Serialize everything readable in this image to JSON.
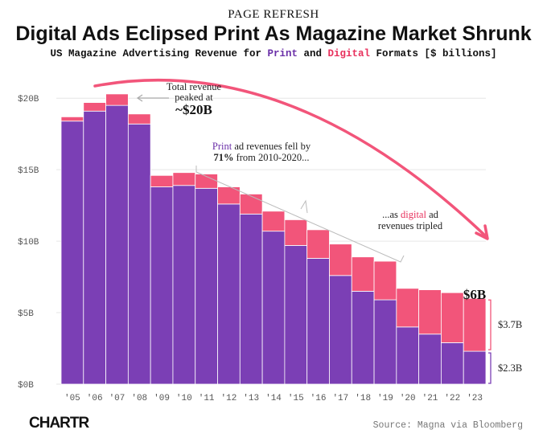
{
  "header": {
    "kicker": "PAGE REFRESH",
    "title": "Digital Ads Eclipsed Print As Magazine Market Shrunk",
    "subtitle_parts": [
      "US Magazine Advertising Revenue for ",
      "Print",
      " and ",
      "Digital",
      " Formats [$ billions]"
    ]
  },
  "colors": {
    "print": "#7b3fb5",
    "digital": "#f2557a",
    "print_text": "#6a2fa8",
    "digital_text": "#e8305c",
    "arrow": "#f2557a"
  },
  "chart_data": {
    "type": "bar",
    "stacked": true,
    "categories": [
      "'05",
      "'06",
      "'07",
      "'08",
      "'09",
      "'10",
      "'11",
      "'12",
      "'13",
      "'14",
      "'15",
      "'16",
      "'17",
      "'18",
      "'19",
      "'20",
      "'21",
      "'22",
      "'23"
    ],
    "series": [
      {
        "name": "Print",
        "values": [
          18.4,
          19.1,
          19.5,
          18.2,
          13.8,
          13.9,
          13.7,
          12.6,
          11.9,
          10.7,
          9.7,
          8.8,
          7.6,
          6.5,
          5.9,
          4.0,
          3.5,
          2.9,
          2.3
        ]
      },
      {
        "name": "Digital",
        "values": [
          0.3,
          0.6,
          0.8,
          0.7,
          0.8,
          0.9,
          1.0,
          1.2,
          1.4,
          1.4,
          1.8,
          2.0,
          2.2,
          2.4,
          2.7,
          2.7,
          3.1,
          3.5,
          3.7
        ]
      }
    ],
    "yticks": [
      {
        "value": 0,
        "label": "$0B"
      },
      {
        "value": 5,
        "label": "$5B"
      },
      {
        "value": 10,
        "label": "$10B"
      },
      {
        "value": 15,
        "label": "$15B"
      },
      {
        "value": 20,
        "label": "$20B"
      }
    ],
    "ylim": [
      0,
      21.7
    ],
    "grid": true
  },
  "annotations": {
    "peak_line1": "Total revenue",
    "peak_line2": "peaked at",
    "peak_value": "~$20B",
    "print_fall_l1_a": "Print",
    "print_fall_l1_b": " ad revenues fell by",
    "print_fall_l2_a": "71%",
    "print_fall_l2_b": " from 2010-2020...",
    "digital_l1_a": "...as ",
    "digital_l1_b": "digital",
    "digital_l1_c": " ad",
    "digital_l2": "revenues tripled",
    "total_2023": "$6B",
    "digital_2023": "$3.7B",
    "print_2023": "$2.3B"
  },
  "footer": {
    "logo": "CHARTR",
    "source": "Source: Magna via Bloomberg"
  }
}
